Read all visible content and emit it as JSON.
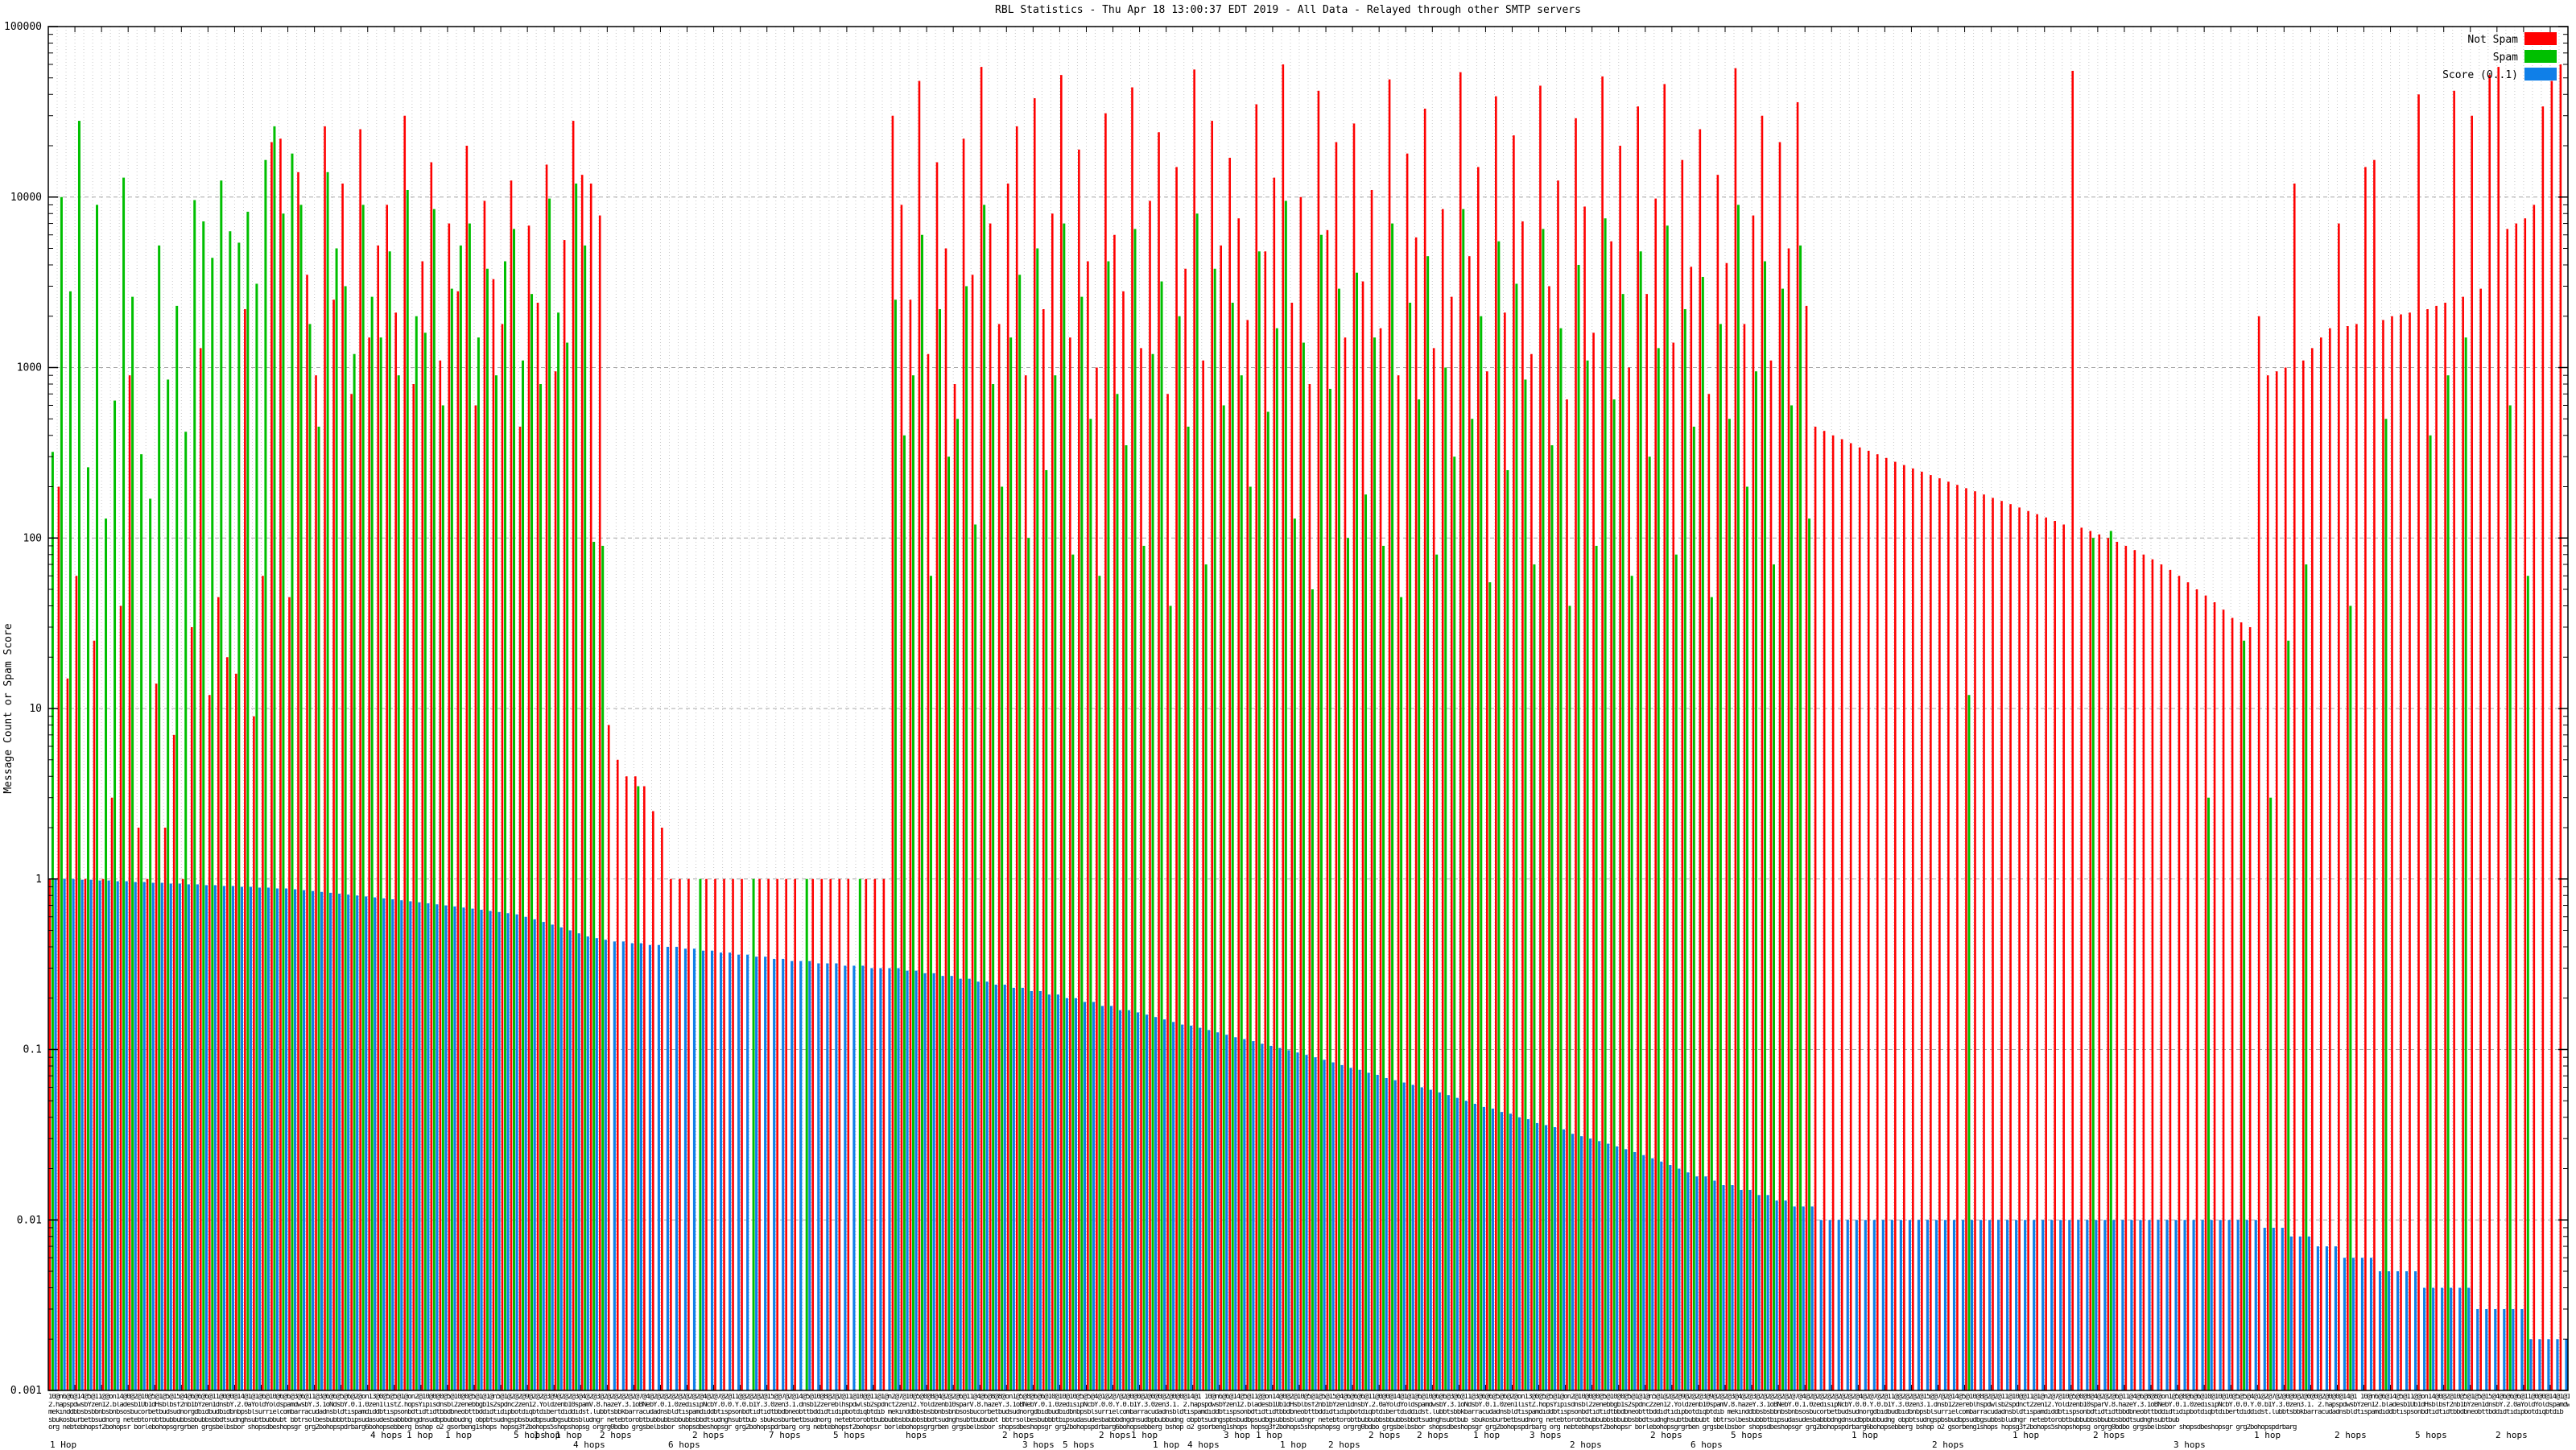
{
  "title": "RBL Statistics - Thu Apr 18 13:00:37 EDT 2019 - All Data - Relayed through other SMTP servers",
  "y_axis": {
    "label": "Message Count or Spam Score",
    "ticks": [
      "100000",
      "10000",
      "1000",
      "100",
      "10",
      "1",
      "0.1",
      "0.01",
      "0.001"
    ]
  },
  "legend": [
    {
      "label": "Not Spam",
      "color": "#ff0000"
    },
    {
      "label": "Spam",
      "color": "#00bf00"
    },
    {
      "label": "Score (0..1)",
      "color": "#0f7fe8"
    }
  ],
  "x_axis": {
    "note": "284 per-sender RBL categories; labels overlap and are illegible",
    "overlap_rows": [
      "10@n6@6@14@5@11@@on14@0@2@10@5@1@5@15@4@6@6@6@11@0@0@14@1@1@6@10@6@6@3@6@11@3@6@6@5@6@2@on13@0@5@5@1@on2@10@0@0@5@10@0@5@1@1@n5@1@2@2@9@2@2@3@9@2@2@3@4@2@3@2@2@2@2@2@7@4@2@2@2@2@2@2@2@4@2@7@2@11@@2@2@2@15@@7@2@14@5@10@8@2@2@11@10@@11@1@n2@7@10@5@0@8@4@2@2@6@11@4@6@8@8@on1@5@8@6@6@10@10@10@5@5@4@1@2@7@2@0@0@2@0@0@2@0@0@14@1",
      "2.hapspdwsbYzen12.bladesb1Ub1dHsblbsf2nb1bYzen1dnsbY.2.0aYoldYoldspamdwsbY.3.1oNdsbY.0.1.0zen1listZ.hopsYipisdnsbl2zenebbgb1s2spdnc2zen12.Yoldzenb10spamV.8.hazeY.3.1oBNebY.0.1.0zedisipNcbY.0.0.Y.0.b1Y.3.0zen3.1.dnsb12zereblhspdwlsb2spdnct2zen12.Yoldzenb10sparV.8.hazeY.3.1oBNebY.0.1.0zedisipNcbY.0.0.Y.0.b1Y.3.0zen3.1.",
      "mekinddbbsbsbbnbsbnbsosbucorbetbudsudnorgdbidbudbidbnbpsblsurrielcombarracudadnsbldtispamdiddbtispsonbdtidtidtbbdbneobttbddidtidipbotdiqbtdibertdiddidst.lubbtsbbkbarracudadnsbldtispamdiddbtispsonbdtidtidtbbdbneobttbddidtidipbotdiqbtdib",
      "sbukosburbetbsudnorg netebtorobtbubbubbsbbubbsbbdtsudnghsubtbubbubt bbtrsolbesbubbbtbipsudasudesbabbbdngdnsudbpbubbudng obpbtsudngspbsbudbpsudbgsubbsbludngr netebtorobtbubbubbsbbubbsbbdtsudnghsubtbub",
      "org nebtebhopsf2bohopsr borlebohopsgrgrben grgsbelbsbor shopsdbeshopsgr grg2bohopspdrbarg6bohopsebberg bshop o2 gsorbeng1shops hopsg3f2bohops5shopshopsg orgrg0bdbo grgsbelbsbor shopsdbeshopsgr grg2bohopspdrbarg"
    ],
    "hop_labels": [
      {
        "x": 62,
        "row": 1,
        "text": "1 Hop"
      },
      {
        "x": 460,
        "row": 0,
        "text": "4 hops"
      },
      {
        "x": 505,
        "row": 0,
        "text": "1 hop"
      },
      {
        "x": 553,
        "row": 0,
        "text": "1 hop"
      },
      {
        "x": 638,
        "row": 0,
        "text": "5 hops"
      },
      {
        "x": 663,
        "row": 0,
        "text": "1 hop"
      },
      {
        "x": 690,
        "row": 0,
        "text": "1 hop"
      },
      {
        "x": 712,
        "row": 1,
        "text": "4 hops"
      },
      {
        "x": 745,
        "row": 0,
        "text": "2 hops"
      },
      {
        "x": 830,
        "row": 1,
        "text": "6 hops"
      },
      {
        "x": 860,
        "row": 0,
        "text": "2 hops"
      },
      {
        "x": 955,
        "row": 0,
        "text": "7 hops"
      },
      {
        "x": 1035,
        "row": 0,
        "text": "5 hops"
      },
      {
        "x": 1125,
        "row": 0,
        "text": "hops"
      },
      {
        "x": 1245,
        "row": 0,
        "text": "2 hops"
      },
      {
        "x": 1270,
        "row": 1,
        "text": "3 hops"
      },
      {
        "x": 1320,
        "row": 1,
        "text": "5 hops"
      },
      {
        "x": 1365,
        "row": 0,
        "text": "2 hops"
      },
      {
        "x": 1405,
        "row": 0,
        "text": "1 hop"
      },
      {
        "x": 1432,
        "row": 1,
        "text": "1 hop"
      },
      {
        "x": 1475,
        "row": 1,
        "text": "4 hops"
      },
      {
        "x": 1520,
        "row": 0,
        "text": "3 hop"
      },
      {
        "x": 1560,
        "row": 0,
        "text": "1 hop"
      },
      {
        "x": 1590,
        "row": 1,
        "text": "1 hop"
      },
      {
        "x": 1650,
        "row": 1,
        "text": "2 hops"
      },
      {
        "x": 1700,
        "row": 0,
        "text": "2 hops"
      },
      {
        "x": 1760,
        "row": 0,
        "text": "2 hops"
      },
      {
        "x": 1830,
        "row": 0,
        "text": "1 hop"
      },
      {
        "x": 1900,
        "row": 0,
        "text": "3 hops"
      },
      {
        "x": 1950,
        "row": 1,
        "text": "2 hops"
      },
      {
        "x": 2050,
        "row": 0,
        "text": "2 hops"
      },
      {
        "x": 2100,
        "row": 1,
        "text": "6 hops"
      },
      {
        "x": 2150,
        "row": 0,
        "text": "5 hops"
      },
      {
        "x": 2300,
        "row": 0,
        "text": "1 hop"
      },
      {
        "x": 2400,
        "row": 1,
        "text": "2 hops"
      },
      {
        "x": 2500,
        "row": 0,
        "text": "1 hop"
      },
      {
        "x": 2600,
        "row": 0,
        "text": "2 hops"
      },
      {
        "x": 2700,
        "row": 1,
        "text": "3 hops"
      },
      {
        "x": 2800,
        "row": 0,
        "text": "1 hop"
      },
      {
        "x": 2900,
        "row": 0,
        "text": "2 hops"
      },
      {
        "x": 3000,
        "row": 0,
        "text": "5 hops"
      },
      {
        "x": 3100,
        "row": 0,
        "text": "2 hops"
      }
    ]
  },
  "chart_data": {
    "type": "bar",
    "title": "RBL Statistics - Thu Apr 18 13:00:37 EDT 2019 - All Data - Relayed through other SMTP servers",
    "ylabel": "Message Count or Spam Score",
    "y_scale": "log10",
    "ylim": [
      0.001,
      100000
    ],
    "grid": true,
    "legend_position": "top-right",
    "categories_count": 284,
    "categories_note": "sender/RBL combinations sorted by descending spam score; x tick labels overlap illegibly",
    "series": [
      {
        "name": "Not Spam",
        "color": "#ff0000",
        "values": [
          1,
          200,
          15,
          60,
          1,
          25,
          1,
          3,
          40,
          900,
          2,
          1,
          14,
          2,
          7,
          1,
          30,
          1300,
          12,
          45,
          20,
          16,
          2200,
          9,
          60,
          21000,
          22000,
          45,
          14000,
          3500,
          900,
          26000,
          2500,
          12000,
          700,
          25000,
          1500,
          5200,
          9000,
          2100,
          30000,
          800,
          4200,
          16000,
          1100,
          7000,
          2800,
          20000,
          600,
          9500,
          3300,
          1800,
          12500,
          450,
          6800,
          2400,
          15500,
          950,
          5600,
          28000,
          13500,
          12000,
          7800,
          8,
          5,
          4,
          4,
          3.5,
          2.5,
          2,
          1,
          1,
          1,
          null,
          1,
          1,
          1,
          1,
          1,
          null,
          1,
          1,
          1,
          1,
          1,
          null,
          1,
          1,
          1,
          1,
          1,
          null,
          1,
          1,
          1,
          30000,
          9000,
          2500,
          48000,
          1200,
          16000,
          5000,
          800,
          22000,
          3500,
          58000,
          7000,
          1800,
          12000,
          26000,
          900,
          38000,
          2200,
          8000,
          52000,
          1500,
          19000,
          4200,
          1000,
          31000,
          6000,
          2800,
          44000,
          1300,
          9500,
          24000,
          700,
          15000,
          3800,
          56000,
          1100,
          28000,
          5200,
          17000,
          7500,
          1900,
          35000,
          4800,
          13000,
          60000,
          2400,
          10000,
          800,
          42000,
          6400,
          21000,
          1500,
          27000,
          3200,
          11000,
          1700,
          49000,
          900,
          18000,
          5800,
          33000,
          1300,
          8500,
          2600,
          54000,
          4500,
          15000,
          950,
          39000,
          2100,
          23000,
          7200,
          1200,
          45000,
          3000,
          12500,
          650,
          29000,
          8800,
          1600,
          51000,
          5500,
          20000,
          1000,
          34000,
          2700,
          9800,
          46000,
          1400,
          16500,
          3900,
          25000,
          700,
          13500,
          4100,
          57000,
          1800,
          7800,
          30000,
          1100,
          21000,
          5000,
          36000,
          2300,
          450,
          425,
          400,
          380,
          360,
          340,
          325,
          310,
          295,
          280,
          268,
          256,
          245,
          234,
          224,
          214,
          205,
          196,
          188,
          180,
          172,
          165,
          158,
          151,
          144,
          138,
          132,
          126,
          120,
          55000,
          115,
          110,
          105,
          100,
          95,
          90,
          85,
          80,
          75,
          70,
          65,
          60,
          55,
          50,
          46,
          42,
          38,
          34,
          32,
          30,
          2000,
          900,
          950,
          1000,
          12000,
          1100,
          1300,
          1500,
          1700,
          7000,
          1750,
          1800,
          15000,
          16500,
          1900,
          2000,
          2050,
          2100,
          40000,
          2200,
          2300,
          2400,
          42000,
          2600,
          30000,
          2900,
          52000,
          58000,
          6500,
          7000,
          7500,
          9000,
          34000,
          48000,
          60000
        ]
      },
      {
        "name": "Spam",
        "color": "#00bf00",
        "values": [
          320,
          10000,
          2800,
          28000,
          260,
          9000,
          130,
          640,
          13000,
          2600,
          310,
          170,
          5200,
          850,
          2300,
          420,
          9600,
          7200,
          4400,
          12500,
          6300,
          5400,
          8200,
          3100,
          16500,
          26000,
          8000,
          18000,
          9000,
          1800,
          450,
          14000,
          5000,
          3000,
          1200,
          9000,
          2600,
          1500,
          4800,
          900,
          11000,
          2000,
          1600,
          8500,
          600,
          2900,
          5200,
          7000,
          1500,
          3800,
          900,
          4200,
          6500,
          1100,
          2700,
          800,
          9800,
          2100,
          1400,
          12000,
          5200,
          95,
          90,
          null,
          null,
          null,
          3.5,
          null,
          null,
          null,
          null,
          null,
          null,
          1,
          null,
          null,
          null,
          null,
          null,
          1,
          null,
          null,
          null,
          null,
          null,
          1,
          null,
          null,
          null,
          null,
          null,
          1,
          null,
          null,
          null,
          2500,
          400,
          900,
          6000,
          60,
          2200,
          300,
          500,
          3000,
          120,
          9000,
          800,
          200,
          1500,
          3500,
          100,
          5000,
          250,
          900,
          7000,
          80,
          2600,
          500,
          60,
          4200,
          700,
          350,
          6500,
          90,
          1200,
          3200,
          40,
          2000,
          450,
          8000,
          70,
          3800,
          600,
          2400,
          900,
          200,
          4800,
          550,
          1700,
          9500,
          130,
          1400,
          50,
          6000,
          750,
          2900,
          100,
          3600,
          180,
          1500,
          90,
          7000,
          45,
          2400,
          650,
          4500,
          80,
          1000,
          300,
          8500,
          500,
          2000,
          55,
          5500,
          250,
          3100,
          850,
          70,
          6500,
          350,
          1700,
          40,
          4000,
          1100,
          90,
          7500,
          650,
          2700,
          60,
          4800,
          300,
          1300,
          6800,
          80,
          2200,
          450,
          3400,
          45,
          1800,
          500,
          9000,
          200,
          950,
          4200,
          70,
          2900,
          600,
          5200,
          130,
          null,
          null,
          null,
          null,
          null,
          null,
          null,
          null,
          null,
          null,
          null,
          null,
          null,
          null,
          null,
          null,
          null,
          12,
          null,
          null,
          null,
          null,
          null,
          null,
          null,
          null,
          null,
          null,
          null,
          null,
          null,
          100,
          null,
          110,
          null,
          null,
          null,
          null,
          null,
          null,
          null,
          null,
          null,
          null,
          3,
          null,
          null,
          null,
          25,
          null,
          null,
          3,
          null,
          25,
          null,
          70,
          null,
          null,
          null,
          null,
          40,
          null,
          null,
          null,
          500,
          null,
          null,
          null,
          null,
          400,
          null,
          900,
          null,
          1500,
          null,
          null,
          null,
          null,
          600,
          null,
          60,
          null,
          null,
          null,
          null
        ]
      },
      {
        "name": "Score (0..1)",
        "color": "#0f7fe8",
        "values": [
          1,
          1,
          1,
          0.99,
          0.99,
          0.98,
          0.98,
          0.97,
          0.97,
          0.96,
          0.96,
          0.95,
          0.95,
          0.94,
          0.94,
          0.93,
          0.93,
          0.92,
          0.92,
          0.91,
          0.91,
          0.9,
          0.9,
          0.89,
          0.89,
          0.88,
          0.88,
          0.87,
          0.86,
          0.85,
          0.84,
          0.83,
          0.82,
          0.81,
          0.8,
          0.79,
          0.78,
          0.77,
          0.76,
          0.75,
          0.74,
          0.73,
          0.72,
          0.71,
          0.7,
          0.69,
          0.68,
          0.67,
          0.66,
          0.65,
          0.64,
          0.63,
          0.62,
          0.6,
          0.58,
          0.56,
          0.54,
          0.52,
          0.5,
          0.48,
          0.46,
          0.45,
          0.44,
          0.43,
          0.43,
          0.42,
          0.42,
          0.41,
          0.41,
          0.4,
          0.4,
          0.39,
          0.39,
          0.38,
          0.38,
          0.37,
          0.37,
          0.36,
          0.36,
          0.35,
          0.35,
          0.34,
          0.34,
          0.33,
          0.33,
          0.33,
          0.32,
          0.32,
          0.32,
          0.31,
          0.31,
          0.31,
          0.3,
          0.3,
          0.3,
          0.3,
          0.29,
          0.29,
          0.28,
          0.28,
          0.27,
          0.27,
          0.26,
          0.26,
          0.25,
          0.25,
          0.24,
          0.24,
          0.23,
          0.23,
          0.22,
          0.22,
          0.21,
          0.21,
          0.2,
          0.2,
          0.19,
          0.19,
          0.18,
          0.18,
          0.17,
          0.17,
          0.165,
          0.16,
          0.155,
          0.15,
          0.145,
          0.14,
          0.138,
          0.134,
          0.13,
          0.126,
          0.122,
          0.118,
          0.115,
          0.112,
          0.108,
          0.105,
          0.102,
          0.099,
          0.096,
          0.093,
          0.09,
          0.087,
          0.084,
          0.081,
          0.078,
          0.076,
          0.073,
          0.071,
          0.068,
          0.066,
          0.064,
          0.062,
          0.06,
          0.058,
          0.056,
          0.054,
          0.052,
          0.05,
          0.048,
          0.046,
          0.045,
          0.043,
          0.042,
          0.04,
          0.039,
          0.037,
          0.036,
          0.035,
          0.034,
          0.032,
          0.031,
          0.03,
          0.029,
          0.028,
          0.027,
          0.026,
          0.025,
          0.024,
          0.023,
          0.022,
          0.021,
          0.02,
          0.019,
          0.018,
          0.018,
          0.017,
          0.016,
          0.016,
          0.015,
          0.015,
          0.014,
          0.014,
          0.013,
          0.013,
          0.012,
          0.012,
          0.012,
          0.01,
          0.01,
          0.01,
          0.01,
          0.01,
          0.01,
          0.01,
          0.01,
          0.01,
          0.01,
          0.01,
          0.01,
          0.01,
          0.01,
          0.01,
          0.01,
          0.01,
          0.01,
          0.01,
          0.01,
          0.01,
          0.01,
          0.01,
          0.01,
          0.01,
          0.01,
          0.01,
          0.01,
          0.01,
          0.01,
          0.01,
          0.01,
          0.01,
          0.01,
          0.01,
          0.01,
          0.01,
          0.01,
          0.01,
          0.01,
          0.01,
          0.01,
          0.01,
          0.01,
          0.01,
          0.01,
          0.01,
          0.01,
          0.01,
          0.01,
          0.009,
          0.009,
          0.009,
          0.008,
          0.008,
          0.008,
          0.007,
          0.007,
          0.007,
          0.006,
          0.006,
          0.006,
          0.006,
          0.005,
          0.005,
          0.005,
          0.005,
          0.005,
          0.004,
          0.004,
          0.004,
          0.004,
          0.004,
          0.004,
          0.003,
          0.003,
          0.003,
          0.003,
          0.003,
          0.003,
          0.002,
          0.002,
          0.002,
          0.002,
          0.002
        ]
      }
    ]
  }
}
